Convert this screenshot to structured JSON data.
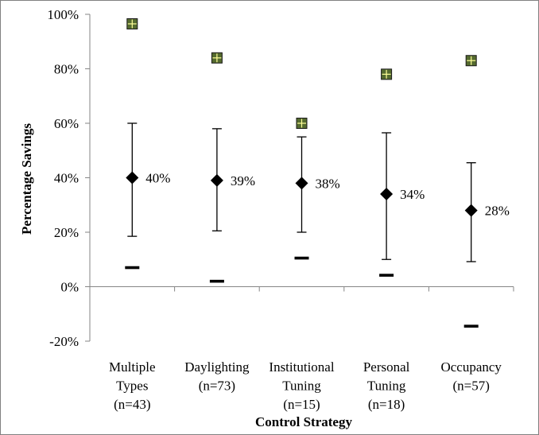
{
  "chart_data": {
    "type": "scatter",
    "title": "",
    "xlabel": "Control Strategy",
    "ylabel": "Percentage Savings",
    "ylim": [
      -20,
      100
    ],
    "yticks": [
      -20,
      0,
      20,
      40,
      60,
      80,
      100
    ],
    "ytick_labels": [
      "-20%",
      "0%",
      "20%",
      "40%",
      "60%",
      "80%",
      "100%"
    ],
    "grid": false,
    "legend": "none",
    "categories": [
      [
        "Multiple",
        "Types",
        "(n=43)"
      ],
      [
        "Daylighting",
        "(n=73)"
      ],
      [
        "Institutional",
        "Tuning",
        "(n=15)"
      ],
      [
        "Personal",
        "Tuning",
        "(n=18)"
      ],
      [
        "Occupancy",
        "(n=57)"
      ]
    ],
    "mean": [
      40,
      39,
      38,
      34,
      28
    ],
    "mean_labels": [
      "40%",
      "39%",
      "38%",
      "34%",
      "28%"
    ],
    "error_high": [
      60,
      58,
      55,
      56.5,
      45.5
    ],
    "error_low": [
      18.5,
      20.5,
      20,
      10,
      9.2
    ],
    "max": [
      96.5,
      84,
      60,
      78,
      83
    ],
    "min": [
      7,
      2,
      10.5,
      4.2,
      -14.5
    ],
    "colors": {
      "mean_marker": "#000000",
      "max_marker_fill": "#556b2f",
      "max_marker_cross": "#ffff99",
      "min_marker": "#000000",
      "axis": "#868686"
    }
  }
}
